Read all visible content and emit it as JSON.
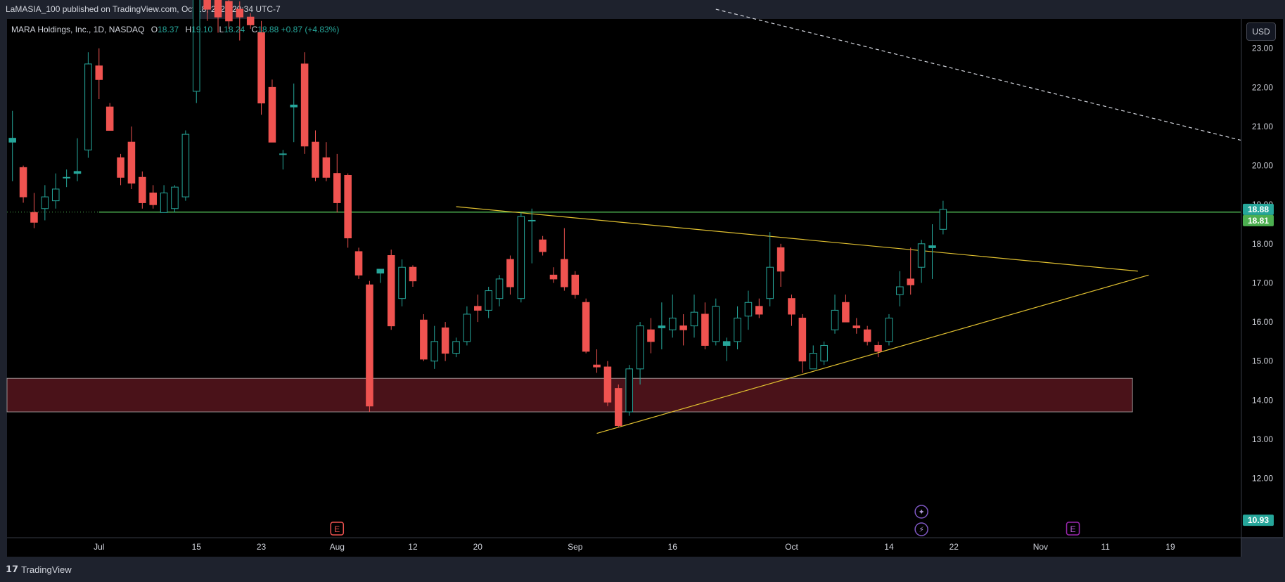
{
  "publish_info": "LaMASIA_100 published on TradingView.com, Oct 18, 2024 20:34 UTC-7",
  "currency_button": "USD",
  "legend": {
    "symbol": "MARA Holdings, Inc., 1D, NASDAQ",
    "open_label": "O",
    "open": "18.37",
    "high_label": "H",
    "high": "19.10",
    "low_label": "L",
    "low": "18.24",
    "close_label": "C",
    "close": "18.88",
    "change": "+0.87 (+4.83%)"
  },
  "footer": {
    "brand": "TradingView"
  },
  "colors": {
    "up": "#26a69a",
    "down": "#ef5350",
    "support_line": "#4caf50",
    "trend_line": "#e0c030",
    "zone_fill": "#4a1219",
    "background": "#000000"
  },
  "chart_data": {
    "type": "candlestick",
    "ylim": [
      10.5,
      23.75
    ],
    "y_ticks": [
      "23.00",
      "22.00",
      "21.00",
      "20.00",
      "19.00",
      "18.00",
      "17.00",
      "16.00",
      "15.00",
      "14.00",
      "13.00",
      "12.00"
    ],
    "x_ticks": [
      {
        "label": "Jul",
        "slot": 8
      },
      {
        "label": "15",
        "slot": 17
      },
      {
        "label": "23",
        "slot": 23
      },
      {
        "label": "Aug",
        "slot": 30
      },
      {
        "label": "12",
        "slot": 37
      },
      {
        "label": "20",
        "slot": 43
      },
      {
        "label": "Sep",
        "slot": 52
      },
      {
        "label": "16",
        "slot": 61
      },
      {
        "label": "Oct",
        "slot": 72
      },
      {
        "label": "14",
        "slot": 81
      },
      {
        "label": "22",
        "slot": 87
      },
      {
        "label": "Nov",
        "slot": 95
      },
      {
        "label": "11",
        "slot": 101
      },
      {
        "label": "19",
        "slot": 107
      }
    ],
    "slot_range": [
      -0.5,
      113.5
    ],
    "candles": [
      {
        "o": 20.6,
        "h": 21.4,
        "l": 19.6,
        "c": 20.7
      },
      {
        "o": 19.95,
        "h": 20.0,
        "l": 19.05,
        "c": 19.2
      },
      {
        "o": 18.8,
        "h": 19.3,
        "l": 18.4,
        "c": 18.55
      },
      {
        "o": 18.9,
        "h": 19.5,
        "l": 18.6,
        "c": 19.2
      },
      {
        "o": 19.1,
        "h": 19.8,
        "l": 18.9,
        "c": 19.4
      },
      {
        "o": 19.7,
        "h": 19.9,
        "l": 19.45,
        "c": 19.7
      },
      {
        "o": 19.8,
        "h": 20.7,
        "l": 19.6,
        "c": 19.85
      },
      {
        "o": 20.4,
        "h": 22.9,
        "l": 20.2,
        "c": 22.6
      },
      {
        "o": 22.55,
        "h": 23.0,
        "l": 21.7,
        "c": 22.2
      },
      {
        "o": 21.5,
        "h": 21.6,
        "l": 20.9,
        "c": 20.9
      },
      {
        "o": 20.2,
        "h": 20.3,
        "l": 19.5,
        "c": 19.7
      },
      {
        "o": 20.6,
        "h": 21.0,
        "l": 19.4,
        "c": 19.55
      },
      {
        "o": 19.7,
        "h": 19.85,
        "l": 18.9,
        "c": 19.05
      },
      {
        "o": 19.3,
        "h": 19.5,
        "l": 18.9,
        "c": 19.0
      },
      {
        "o": 18.8,
        "h": 19.5,
        "l": 18.8,
        "c": 19.3
      },
      {
        "o": 18.9,
        "h": 19.5,
        "l": 18.8,
        "c": 19.45
      },
      {
        "o": 19.2,
        "h": 20.9,
        "l": 19.1,
        "c": 20.8
      },
      {
        "o": 21.9,
        "h": 26.5,
        "l": 21.6,
        "c": 25.5
      },
      {
        "o": 25.0,
        "h": 26.0,
        "l": 23.7,
        "c": 24.0
      },
      {
        "o": 24.5,
        "h": 25.0,
        "l": 23.4,
        "c": 23.8
      },
      {
        "o": 24.2,
        "h": 24.5,
        "l": 23.5,
        "c": 23.7
      },
      {
        "o": 24.0,
        "h": 24.2,
        "l": 23.2,
        "c": 23.8
      },
      {
        "o": 23.8,
        "h": 23.9,
        "l": 23.5,
        "c": 23.6
      },
      {
        "o": 23.4,
        "h": 23.7,
        "l": 21.3,
        "c": 21.6
      },
      {
        "o": 22.0,
        "h": 22.2,
        "l": 20.6,
        "c": 20.6
      },
      {
        "o": 20.3,
        "h": 20.4,
        "l": 19.9,
        "c": 20.3
      },
      {
        "o": 21.5,
        "h": 22.1,
        "l": 20.6,
        "c": 21.55
      },
      {
        "o": 22.6,
        "h": 22.9,
        "l": 20.3,
        "c": 20.5
      },
      {
        "o": 20.6,
        "h": 20.9,
        "l": 19.6,
        "c": 19.7
      },
      {
        "o": 20.2,
        "h": 20.6,
        "l": 19.6,
        "c": 19.7
      },
      {
        "o": 19.8,
        "h": 20.3,
        "l": 18.8,
        "c": 19.05
      },
      {
        "o": 19.75,
        "h": 19.8,
        "l": 17.9,
        "c": 18.15
      },
      {
        "o": 17.8,
        "h": 17.9,
        "l": 17.1,
        "c": 17.2
      },
      {
        "o": 16.95,
        "h": 17.05,
        "l": 13.7,
        "c": 13.85
      },
      {
        "o": 17.25,
        "h": 17.35,
        "l": 17.0,
        "c": 17.35
      },
      {
        "o": 17.7,
        "h": 17.85,
        "l": 15.8,
        "c": 15.9
      },
      {
        "o": 16.6,
        "h": 17.6,
        "l": 16.4,
        "c": 17.4
      },
      {
        "o": 17.4,
        "h": 17.45,
        "l": 16.9,
        "c": 17.05
      },
      {
        "o": 16.05,
        "h": 16.2,
        "l": 15.0,
        "c": 15.05
      },
      {
        "o": 15.0,
        "h": 15.9,
        "l": 14.8,
        "c": 15.5
      },
      {
        "o": 15.85,
        "h": 16.0,
        "l": 15.0,
        "c": 15.2
      },
      {
        "o": 15.2,
        "h": 15.6,
        "l": 15.1,
        "c": 15.5
      },
      {
        "o": 15.5,
        "h": 16.4,
        "l": 15.4,
        "c": 16.2
      },
      {
        "o": 16.4,
        "h": 16.7,
        "l": 16.0,
        "c": 16.3
      },
      {
        "o": 16.3,
        "h": 16.9,
        "l": 16.1,
        "c": 16.8
      },
      {
        "o": 16.6,
        "h": 17.2,
        "l": 16.4,
        "c": 17.1
      },
      {
        "o": 17.6,
        "h": 17.7,
        "l": 16.7,
        "c": 16.9
      },
      {
        "o": 16.6,
        "h": 18.8,
        "l": 16.5,
        "c": 18.7
      },
      {
        "o": 18.6,
        "h": 18.9,
        "l": 17.5,
        "c": 18.6
      },
      {
        "o": 18.1,
        "h": 18.2,
        "l": 17.7,
        "c": 17.8
      },
      {
        "o": 17.2,
        "h": 17.4,
        "l": 17.0,
        "c": 17.1
      },
      {
        "o": 17.6,
        "h": 18.4,
        "l": 16.8,
        "c": 16.9
      },
      {
        "o": 17.2,
        "h": 17.3,
        "l": 16.6,
        "c": 16.7
      },
      {
        "o": 16.5,
        "h": 16.6,
        "l": 15.2,
        "c": 15.25
      },
      {
        "o": 14.9,
        "h": 15.3,
        "l": 14.7,
        "c": 14.85
      },
      {
        "o": 14.85,
        "h": 15.0,
        "l": 13.85,
        "c": 13.95
      },
      {
        "o": 14.3,
        "h": 14.4,
        "l": 13.3,
        "c": 13.35
      },
      {
        "o": 13.7,
        "h": 14.9,
        "l": 13.6,
        "c": 14.8
      },
      {
        "o": 14.8,
        "h": 16.0,
        "l": 14.4,
        "c": 15.9
      },
      {
        "o": 15.8,
        "h": 16.1,
        "l": 15.2,
        "c": 15.5
      },
      {
        "o": 15.85,
        "h": 16.5,
        "l": 15.3,
        "c": 15.9
      },
      {
        "o": 15.8,
        "h": 16.7,
        "l": 15.6,
        "c": 16.1
      },
      {
        "o": 15.9,
        "h": 16.2,
        "l": 15.4,
        "c": 15.8
      },
      {
        "o": 15.9,
        "h": 16.7,
        "l": 15.6,
        "c": 16.25
      },
      {
        "o": 16.2,
        "h": 16.5,
        "l": 15.3,
        "c": 15.4
      },
      {
        "o": 15.5,
        "h": 16.6,
        "l": 15.4,
        "c": 16.4
      },
      {
        "o": 15.4,
        "h": 15.6,
        "l": 15.0,
        "c": 15.5
      },
      {
        "o": 15.5,
        "h": 16.4,
        "l": 15.3,
        "c": 16.1
      },
      {
        "o": 16.15,
        "h": 16.8,
        "l": 15.8,
        "c": 16.5
      },
      {
        "o": 16.4,
        "h": 16.6,
        "l": 16.1,
        "c": 16.2
      },
      {
        "o": 16.6,
        "h": 18.3,
        "l": 16.4,
        "c": 17.4
      },
      {
        "o": 17.9,
        "h": 18.0,
        "l": 16.9,
        "c": 17.3
      },
      {
        "o": 16.6,
        "h": 16.7,
        "l": 15.9,
        "c": 16.2
      },
      {
        "o": 16.1,
        "h": 16.2,
        "l": 14.7,
        "c": 15.0
      },
      {
        "o": 14.8,
        "h": 15.4,
        "l": 14.8,
        "c": 15.2
      },
      {
        "o": 15.0,
        "h": 15.5,
        "l": 14.9,
        "c": 15.4
      },
      {
        "o": 15.8,
        "h": 16.7,
        "l": 15.7,
        "c": 16.3
      },
      {
        "o": 16.5,
        "h": 16.7,
        "l": 16.0,
        "c": 16.0
      },
      {
        "o": 15.9,
        "h": 16.1,
        "l": 15.7,
        "c": 15.85
      },
      {
        "o": 15.8,
        "h": 15.9,
        "l": 15.4,
        "c": 15.5
      },
      {
        "o": 15.4,
        "h": 15.5,
        "l": 15.1,
        "c": 15.25
      },
      {
        "o": 15.5,
        "h": 16.2,
        "l": 15.4,
        "c": 16.1
      },
      {
        "o": 16.7,
        "h": 17.3,
        "l": 16.4,
        "c": 16.9
      },
      {
        "o": 17.1,
        "h": 17.9,
        "l": 16.7,
        "c": 16.95
      },
      {
        "o": 17.4,
        "h": 18.1,
        "l": 17.0,
        "c": 18.0
      },
      {
        "o": 17.9,
        "h": 18.5,
        "l": 17.1,
        "c": 17.95
      },
      {
        "o": 18.37,
        "h": 19.1,
        "l": 18.24,
        "c": 18.88
      }
    ],
    "support_level": 18.81,
    "zone": {
      "top": 14.56,
      "bottom": 13.7,
      "slot_start": -0.5,
      "slot_end": 103.5
    },
    "trendlines": [
      {
        "name": "upper-trendline",
        "from": {
          "slot": 41,
          "y": 18.95
        },
        "to": {
          "slot": 104,
          "y": 17.3
        }
      },
      {
        "name": "lower-trendline",
        "from": {
          "slot": 54,
          "y": 13.15
        },
        "to": {
          "slot": 105,
          "y": 17.2
        }
      },
      {
        "name": "dashed-trendline",
        "from": {
          "slot": 65,
          "y": 24.0
        },
        "to": {
          "slot": 113.5,
          "y": 20.65
        }
      }
    ],
    "price_labels": [
      {
        "text": "18.88",
        "y": 18.88,
        "color": "#26a69a"
      },
      {
        "text": "18.81",
        "y": 18.81,
        "color": "#4caf50"
      },
      {
        "text": "10.93",
        "y": 10.93,
        "color": "#26a69a"
      }
    ],
    "markers": [
      {
        "symbol": "E",
        "slot": 30,
        "kind": "earnings"
      },
      {
        "symbol": "E",
        "slot": 98,
        "kind": "earnings"
      },
      {
        "symbol": "✦",
        "slot": 84,
        "kind": "event",
        "row": 1
      },
      {
        "symbol": "⚡",
        "slot": 84,
        "kind": "event",
        "row": 2
      }
    ]
  }
}
